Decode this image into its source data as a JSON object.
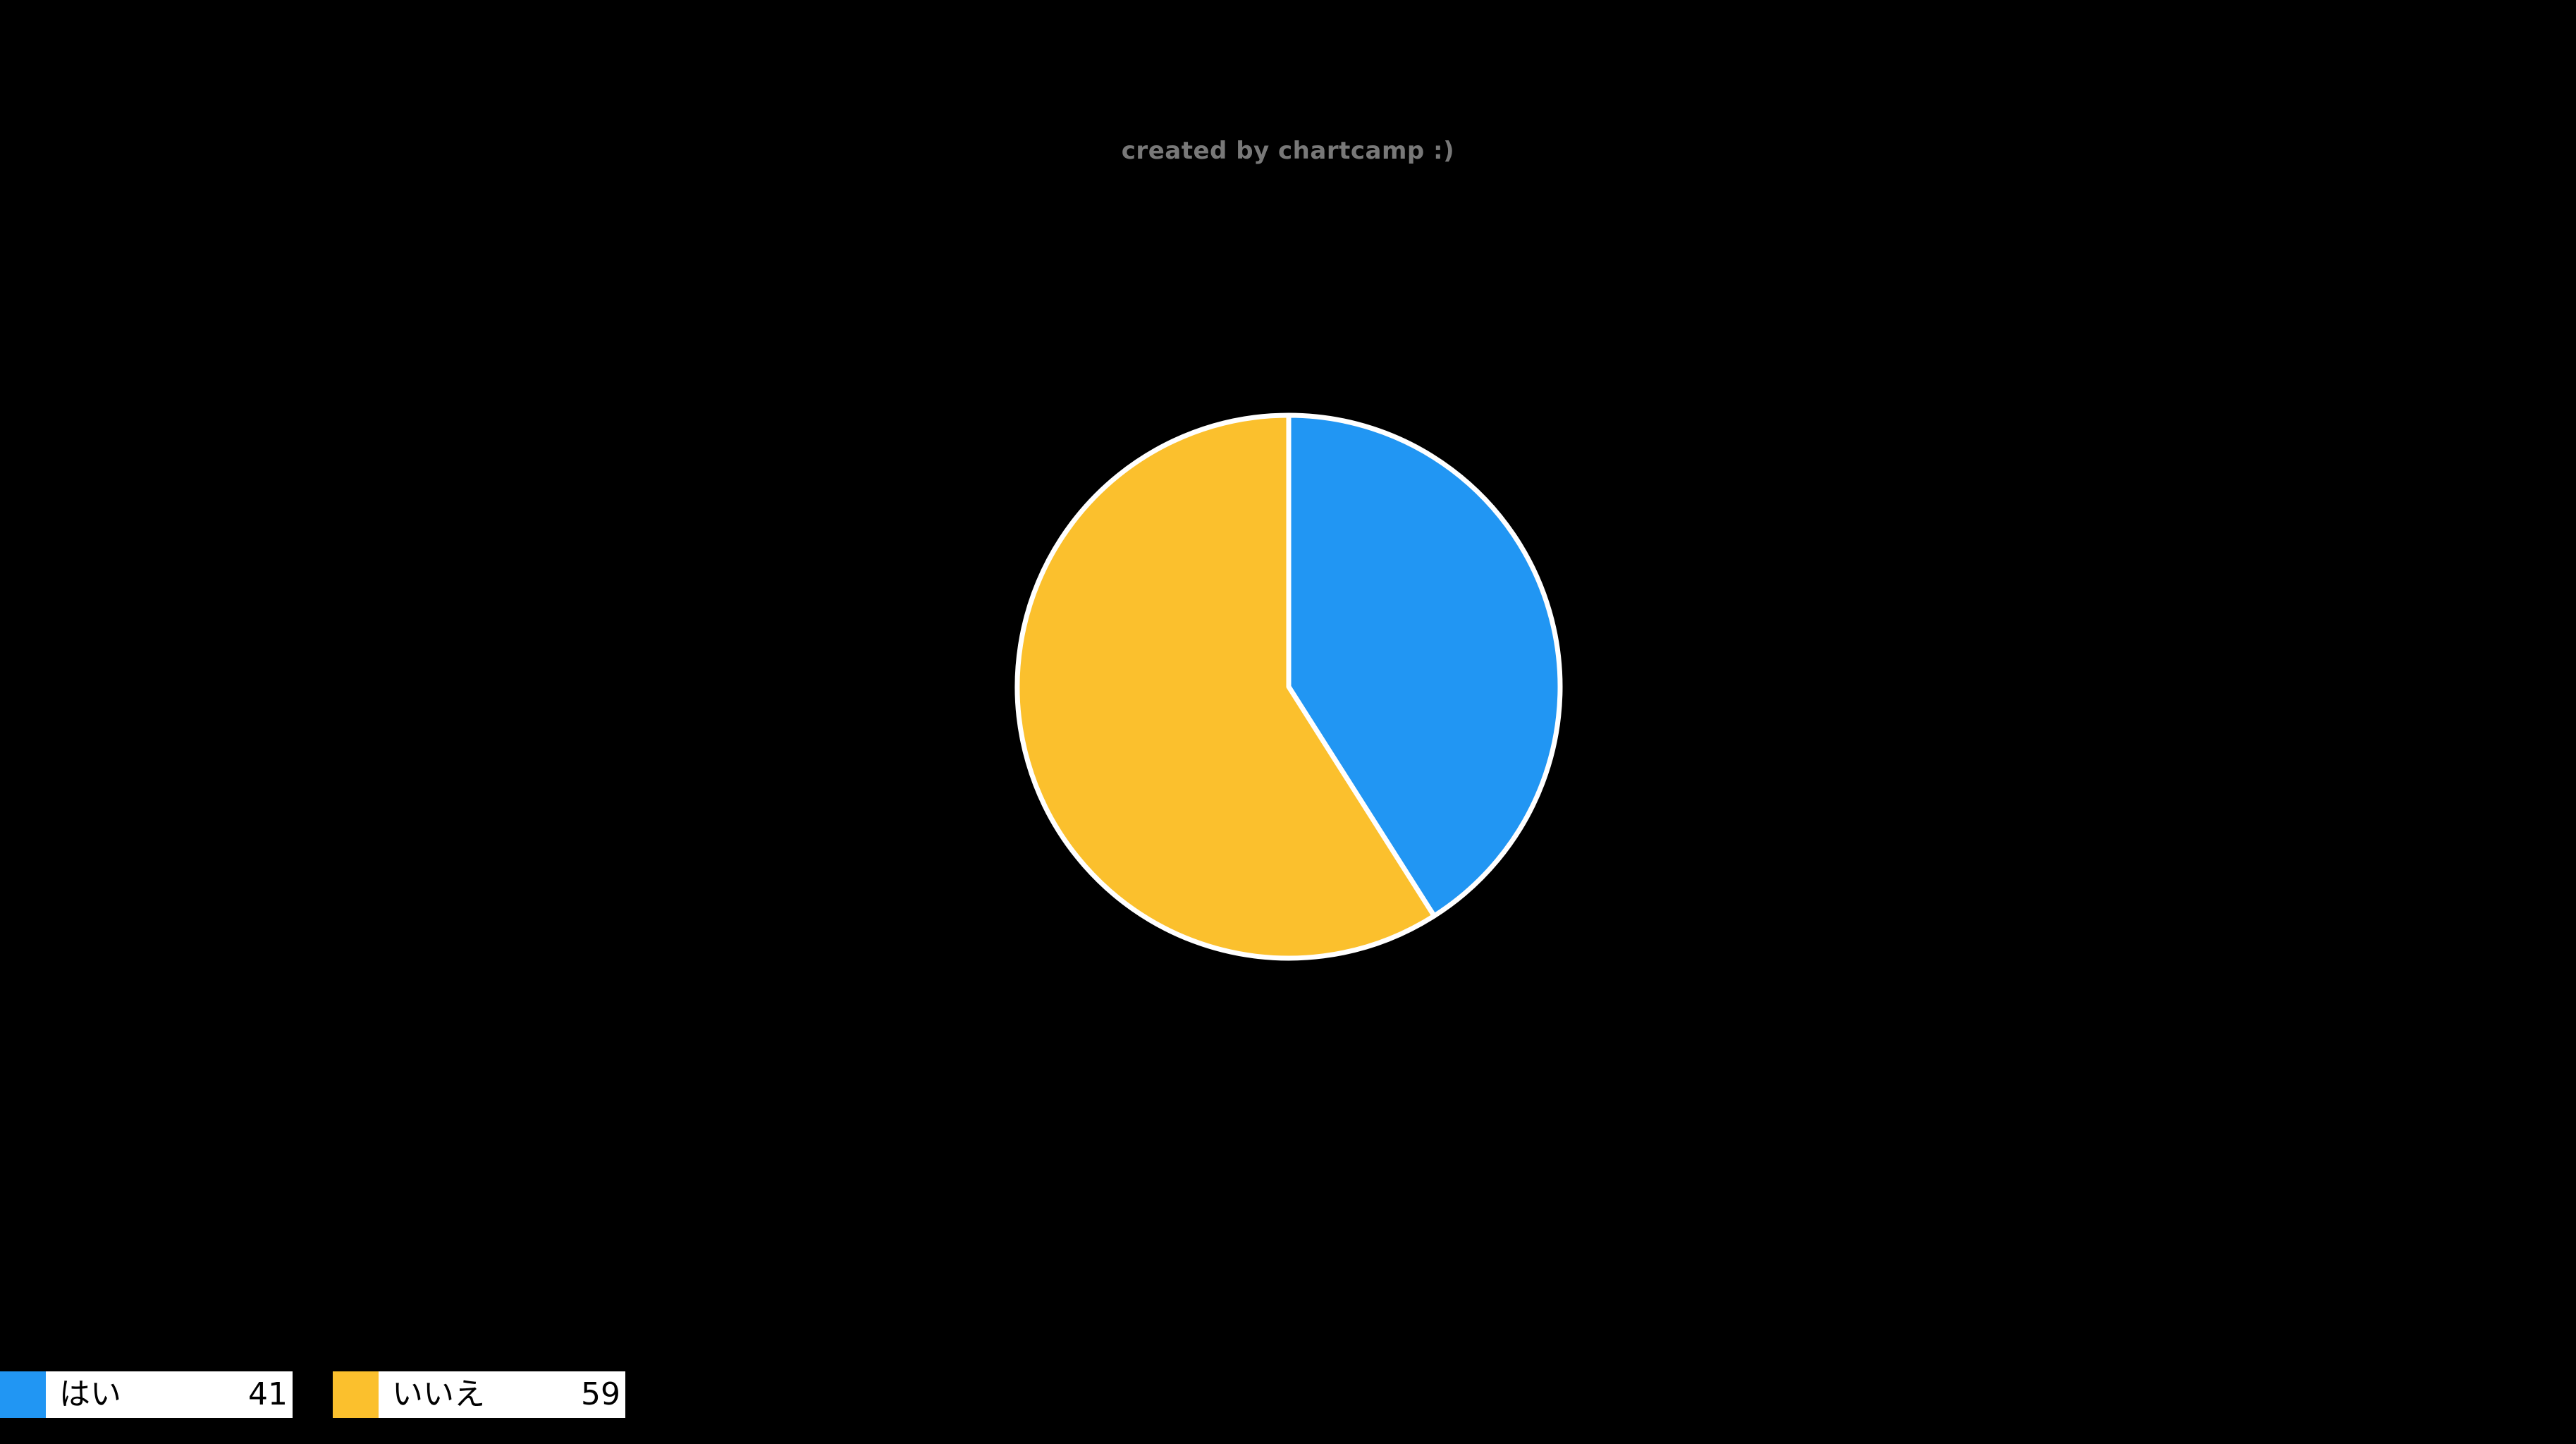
{
  "attribution": "created by chartcamp :)",
  "colors": {
    "background": "#000000",
    "attribution_text": "#787878",
    "slice_separator": "#ffffff",
    "legend_box_background": "#ffffff",
    "legend_text": "#000000"
  },
  "chart_data": {
    "type": "pie",
    "title": "",
    "categories": [
      "はい",
      "いいえ"
    ],
    "values": [
      41,
      59
    ],
    "slice_colors": [
      "#2196f3",
      "#fbc02d"
    ],
    "start_angle": "12-o-clock",
    "direction": "clockwise",
    "stroke_width": 7,
    "legend_position": "bottom-left",
    "items": [
      {
        "label": "はい",
        "value": "41",
        "color": "#2196f3"
      },
      {
        "label": "いいえ",
        "value": "59",
        "color": "#fbc02d"
      }
    ]
  }
}
